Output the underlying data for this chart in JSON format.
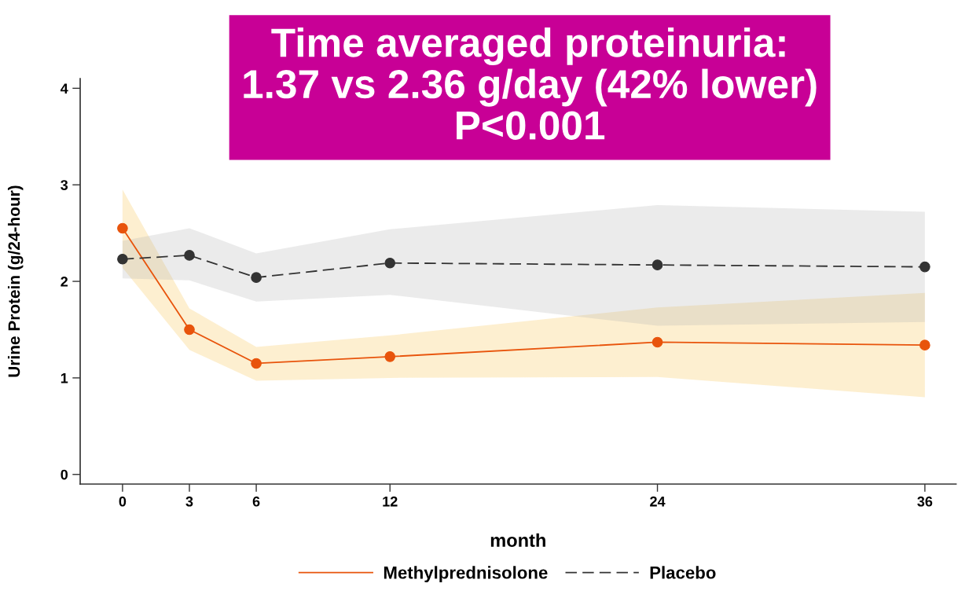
{
  "chart_data": {
    "type": "line",
    "title": "Time averaged proteinuria:\n1.37 vs 2.36 g/day (42% lower)\nP<0.001",
    "xlabel": "month",
    "ylabel": "Urine Protein (g/24-hour)",
    "x": [
      0,
      3,
      6,
      12,
      24,
      36
    ],
    "xlim": [
      -1.9,
      37.4
    ],
    "xticks": [
      0,
      3,
      6,
      12,
      24,
      36
    ],
    "ylim": [
      -0.1,
      4.1
    ],
    "yticks": [
      0,
      1,
      2,
      3,
      4
    ],
    "grid": false,
    "legend": "bottom",
    "marker": "circle",
    "series": [
      {
        "name": "Methylprednisolone",
        "color": "#e8540c",
        "line_style": "solid",
        "values": [
          2.55,
          1.5,
          1.15,
          1.22,
          1.37,
          1.34
        ],
        "lower": [
          2.14,
          1.29,
          0.97,
          1.0,
          1.01,
          0.8
        ],
        "upper": [
          2.95,
          1.72,
          1.32,
          1.44,
          1.73,
          1.88
        ]
      },
      {
        "name": "Placebo",
        "color": "#333333",
        "line_style": "dashed",
        "values": [
          2.23,
          2.27,
          2.04,
          2.19,
          2.17,
          2.15
        ],
        "lower": [
          2.03,
          2.01,
          1.79,
          1.86,
          1.54,
          1.58
        ],
        "upper": [
          2.42,
          2.55,
          2.29,
          2.54,
          2.79,
          2.72
        ]
      }
    ]
  }
}
